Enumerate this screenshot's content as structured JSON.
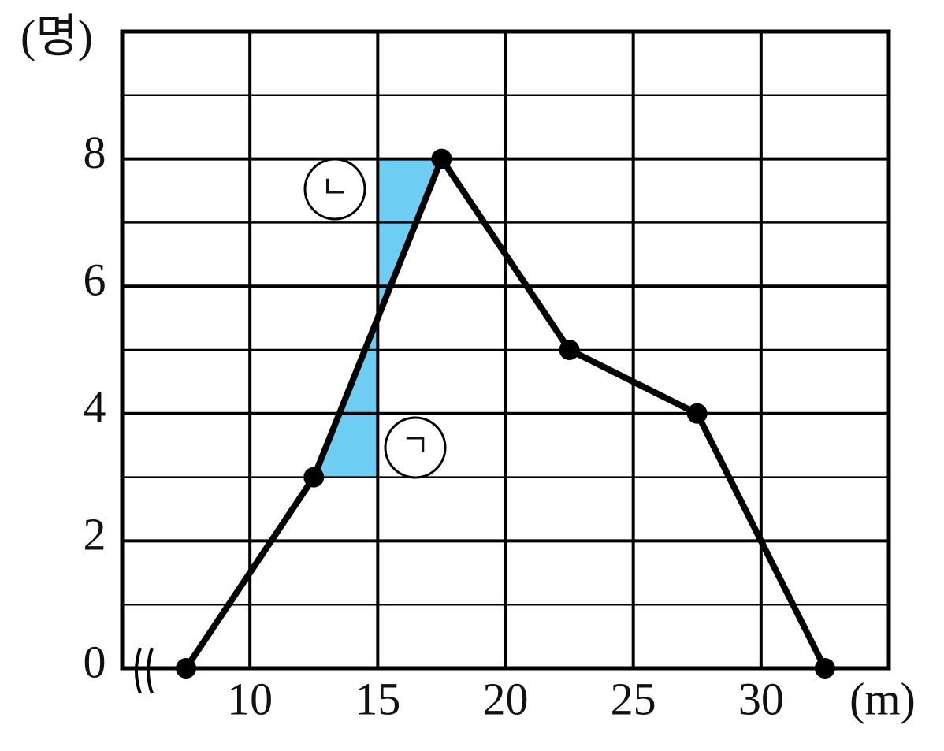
{
  "chart_data": {
    "type": "line",
    "y_unit": "(명)",
    "x_unit": "(m)",
    "x": [
      7.5,
      12.5,
      17.5,
      22.5,
      27.5,
      32.5
    ],
    "series": [
      {
        "color": "#000000",
        "values": [
          0,
          3,
          8,
          5,
          4,
          0
        ]
      }
    ],
    "xlim": [
      5,
      35
    ],
    "xticks": [
      10,
      15,
      20,
      25,
      30
    ],
    "ylim": [
      0,
      10
    ],
    "yticks": [
      0,
      2,
      4,
      6,
      8
    ],
    "minor_yticks": [
      1,
      3,
      5,
      7,
      9
    ],
    "grid": true,
    "shade_color": "#6dcdf3",
    "annotations": [
      "ㄱ",
      "ㄴ"
    ]
  }
}
